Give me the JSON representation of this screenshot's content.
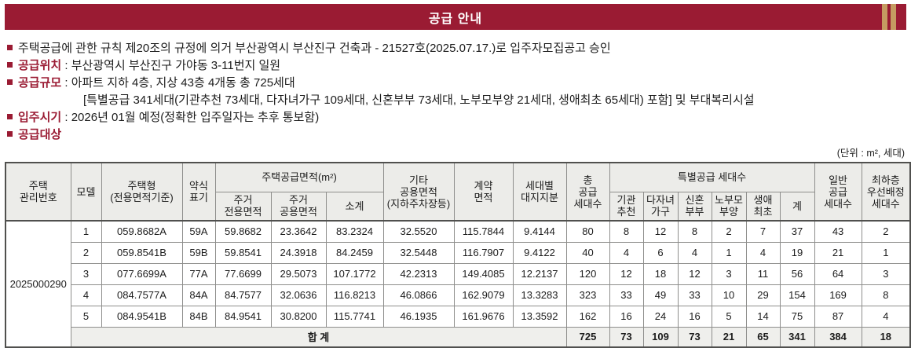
{
  "header": {
    "title": "공급 안내",
    "bar_color": "#9A1B33",
    "stripe_color": "#C59B61"
  },
  "bullets": [
    {
      "text": "주택공급에 관한 규칙 제20조의 규정에 의거 부산광역시 부산진구 건축과 - 21527호(2025.07.17.)로 입주자모집공고 승인"
    },
    {
      "label": "공급위치",
      "text": " : 부산광역시 부산진구 가야동 3-11번지 일원"
    },
    {
      "label": "공급규모",
      "text": " : 아파트 지하 4층, 지상 43층 4개동 총 725세대",
      "sub": "[특별공급 341세대(기관추천 73세대, 다자녀가구 109세대, 신혼부부 73세대, 노부모부양 21세대, 생애최초 65세대) 포함] 및 부대복리시설"
    },
    {
      "label": "입주시기",
      "text": " : 2026년 01월 예정(정확한 입주일자는 추후 통보함)"
    },
    {
      "label": "공급대상",
      "text": ""
    }
  ],
  "unit_note": "(단위 : m², 세대)",
  "table": {
    "management_number": "2025000290",
    "header_cells": {
      "mgmt": "주택\n관리번호",
      "model": "모델",
      "type": "주택형\n(전용면적기준)",
      "abbr": "약식\n표기",
      "supply_area_group": "주택공급면적(m²)",
      "area_private": "주거\n전용면적",
      "area_common": "주거\n공용면적",
      "area_subtotal": "소계",
      "etc_area": "기타\n공용면적\n(지하주차장등)",
      "contract_area": "계약\n면적",
      "land_share": "세대별\n대지지분",
      "total_units": "총\n공급\n세대수",
      "special_group": "특별공급 세대수",
      "special_org": "기관\n추천",
      "special_multi": "다자녀\n가구",
      "special_newly": "신혼\n부부",
      "special_elder": "노부모\n부양",
      "special_first": "생애\n최초",
      "special_sum": "계",
      "general_units": "일반\n공급\n세대수",
      "lowest_floor": "최하층\n우선배정\n세대수"
    },
    "rows": [
      {
        "cells": [
          "1",
          "059.8682A",
          "59A",
          "59.8682",
          "23.3642",
          "83.2324",
          "32.5520",
          "115.7844",
          "9.4144",
          "80",
          "8",
          "12",
          "8",
          "2",
          "7",
          "37",
          "43",
          "2"
        ]
      },
      {
        "cells": [
          "2",
          "059.8541B",
          "59B",
          "59.8541",
          "24.3918",
          "84.2459",
          "32.5448",
          "116.7907",
          "9.4122",
          "40",
          "4",
          "6",
          "4",
          "1",
          "4",
          "19",
          "21",
          "1"
        ]
      },
      {
        "cells": [
          "3",
          "077.6699A",
          "77A",
          "77.6699",
          "29.5073",
          "107.1772",
          "42.2313",
          "149.4085",
          "12.2137",
          "120",
          "12",
          "18",
          "12",
          "3",
          "11",
          "56",
          "64",
          "3"
        ]
      },
      {
        "cells": [
          "4",
          "084.7577A",
          "84A",
          "84.7577",
          "32.0636",
          "116.8213",
          "46.0866",
          "162.9079",
          "13.3283",
          "323",
          "33",
          "49",
          "33",
          "10",
          "29",
          "154",
          "169",
          "8"
        ]
      },
      {
        "cells": [
          "5",
          "084.9541B",
          "84B",
          "84.9541",
          "30.8200",
          "115.7741",
          "46.1935",
          "161.9676",
          "13.3592",
          "162",
          "16",
          "24",
          "16",
          "5",
          "14",
          "75",
          "87",
          "4"
        ]
      }
    ],
    "total": {
      "label": "합 계",
      "cells": [
        "725",
        "73",
        "109",
        "73",
        "21",
        "65",
        "341",
        "384",
        "18"
      ]
    }
  }
}
